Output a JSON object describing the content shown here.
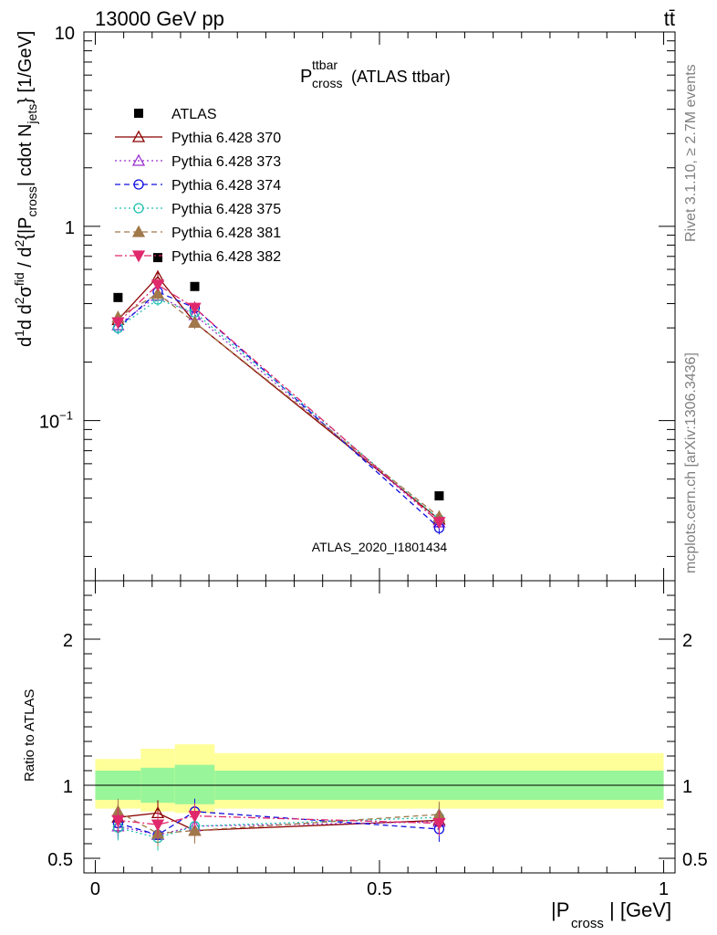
{
  "header": {
    "process": "13000 GeV pp",
    "tag": "tt̄"
  },
  "side": {
    "rivet": "Rivet 3.1.10, ≥ 2.7M events",
    "mcplots": "mcplots.cern.ch [arXiv:1306.3436]"
  },
  "plot": {
    "title_main": "P",
    "title_sup": "ttbar",
    "title_sub": "cross",
    "title_rest": "(ATLAS ttbar)",
    "watermark": "ATLAS_2020_I1801434",
    "ylabel": "d²σ^{fid}/d²{|P_cross| cdot N_jets} [1/GeV]",
    "ratio_ylabel": "Ratio to ATLAS",
    "xlabel_main": "|P",
    "xlabel_sub": "cross",
    "xlabel_rest": "| [GeV]"
  },
  "chart_data": {
    "type": "line",
    "x": [
      0.04,
      0.11,
      0.175,
      0.605
    ],
    "bin_edges": [
      0.0,
      0.08,
      0.14,
      0.21,
      1.0
    ],
    "xlim": [
      -0.02,
      1.02
    ],
    "ylim": [
      0.015,
      10
    ],
    "yscale": "log",
    "ratio_ylim": [
      0.4,
      2.4
    ],
    "xticks": [
      "0",
      "0.5",
      "1"
    ],
    "yticks": [
      "10",
      "1",
      "10^-1"
    ],
    "ratio_yticks": [
      "0.5",
      "1",
      "2"
    ],
    "legend_position": "top-left",
    "reference": {
      "name": "ATLAS",
      "values": [
        0.43,
        0.69,
        0.49,
        0.041
      ],
      "band_inner": [
        [
          0.9,
          1.1
        ],
        [
          0.88,
          1.12
        ],
        [
          0.87,
          1.14
        ],
        [
          0.9,
          1.1
        ]
      ],
      "band_outer": [
        [
          0.84,
          1.18
        ],
        [
          0.82,
          1.25
        ],
        [
          0.81,
          1.28
        ],
        [
          0.84,
          1.22
        ]
      ]
    },
    "series": [
      {
        "name": "Pythia 6.428 370",
        "color": "#8b0000",
        "dash": "",
        "marker": "triangle-open",
        "values": [
          0.33,
          0.55,
          0.32,
          0.031
        ],
        "ratio": [
          0.78,
          0.81,
          0.69,
          0.76
        ]
      },
      {
        "name": "Pythia 6.428 373",
        "color": "#9932cc",
        "dash": "2,3",
        "marker": "triangle-open",
        "values": [
          0.31,
          0.44,
          0.35,
          0.03
        ],
        "ratio": [
          0.72,
          0.66,
          0.72,
          0.75
        ]
      },
      {
        "name": "Pythia 6.428 374",
        "color": "#1010e0",
        "dash": "6,4",
        "marker": "circle-open",
        "values": [
          0.3,
          0.46,
          0.38,
          0.028
        ],
        "ratio": [
          0.74,
          0.66,
          0.82,
          0.7
        ]
      },
      {
        "name": "Pythia 6.428 375",
        "color": "#20c0b0",
        "dash": "2,3",
        "marker": "circle-open",
        "values": [
          0.3,
          0.42,
          0.36,
          0.031
        ],
        "ratio": [
          0.71,
          0.64,
          0.72,
          0.78
        ]
      },
      {
        "name": "Pythia 6.428 381",
        "color": "#a0784a",
        "dash": "6,4",
        "marker": "triangle-filled",
        "values": [
          0.34,
          0.45,
          0.32,
          0.032
        ],
        "ratio": [
          0.82,
          0.67,
          0.69,
          0.8
        ]
      },
      {
        "name": "Pythia 6.428 382",
        "color": "#e0286c",
        "dash": "8,3,2,3",
        "marker": "triangle-down-filled",
        "values": [
          0.32,
          0.5,
          0.38,
          0.03
        ],
        "ratio": [
          0.76,
          0.73,
          0.79,
          0.74
        ]
      }
    ]
  }
}
